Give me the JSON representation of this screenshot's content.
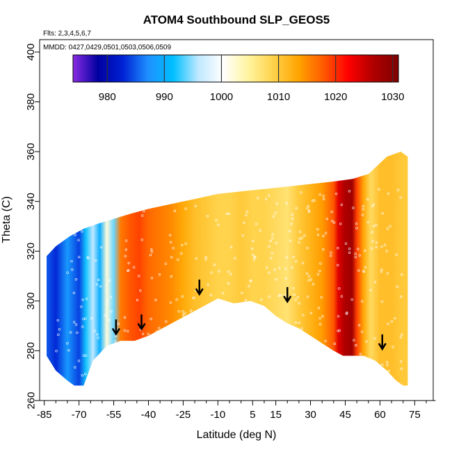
{
  "chart_data": {
    "type": "heatmap",
    "title": "ATOM4 Southbound SLP_GEOS5",
    "notes": [
      "Flts: 2,3,4,5,6,7",
      "MMDD: 0427,0429,0501,0503,0506,0509"
    ],
    "xlabel": "Latitude (deg N)",
    "ylabel": "Theta (C)",
    "xlim": [
      -87,
      83
    ],
    "ylim": [
      260,
      405
    ],
    "xticks": [
      -85,
      -70,
      -55,
      -40,
      -25,
      -10,
      5,
      15,
      30,
      45,
      60,
      75
    ],
    "xtick_labels": [
      "-85",
      "-70",
      "-55",
      "-40",
      "-25",
      "-10",
      "5",
      "15",
      "30",
      "45",
      "60",
      "75"
    ],
    "yticks": [
      260,
      280,
      300,
      320,
      340,
      360,
      380,
      400
    ],
    "ytick_labels": [
      "260",
      "280",
      "300",
      "320",
      "340",
      "360",
      "380",
      "400"
    ],
    "colorbar": {
      "range": [
        974,
        1031
      ],
      "ticks": [
        980,
        990,
        1000,
        1010,
        1020,
        1030
      ],
      "tick_labels": [
        "980",
        "990",
        "1000",
        "1010",
        "1020",
        "1030"
      ],
      "colors": [
        "#8a2be2",
        "#0000a0",
        "#0022d4",
        "#1e90ff",
        "#00bfff",
        "#bfe8ff",
        "#ffffff",
        "#fff4a0",
        "#ffd24a",
        "#ffa500",
        "#ff5a00",
        "#ff0000",
        "#b00000",
        "#800000"
      ]
    },
    "slp_profile": {
      "lat": [
        -84,
        -80,
        -75,
        -70,
        -67,
        -64,
        -61,
        -58,
        -55,
        -52,
        -48,
        -44,
        -40,
        -35,
        -30,
        -25,
        -20,
        -15,
        -10,
        -5,
        0,
        5,
        10,
        15,
        20,
        25,
        30,
        35,
        40,
        42,
        45,
        48,
        50,
        53,
        56,
        60,
        65,
        70,
        72
      ],
      "slp": [
        985,
        983,
        988,
        984,
        992,
        996,
        990,
        1002,
        994,
        1016,
        1018,
        1019,
        1017,
        1016,
        1015,
        1013,
        1011,
        1010,
        1009,
        1009,
        1010,
        1009,
        1009,
        1008,
        1007,
        1010,
        1012,
        1014,
        1018,
        1024,
        1027,
        1028,
        1019,
        1013,
        1008,
        1011,
        1011,
        1010,
        1010
      ]
    },
    "domain": {
      "bottom": [
        [
          -84,
          278
        ],
        [
          -80,
          272
        ],
        [
          -75,
          268
        ],
        [
          -72,
          266
        ],
        [
          -68,
          266
        ],
        [
          -64,
          276
        ],
        [
          -58,
          282
        ],
        [
          -52,
          284
        ],
        [
          -46,
          284
        ],
        [
          -40,
          286
        ],
        [
          -32,
          290
        ],
        [
          -24,
          294
        ],
        [
          -16,
          298
        ],
        [
          -10,
          301
        ],
        [
          -3,
          299
        ],
        [
          4,
          300
        ],
        [
          10,
          298
        ],
        [
          15,
          294
        ],
        [
          20,
          291
        ],
        [
          25,
          289
        ],
        [
          30,
          286
        ],
        [
          35,
          283
        ],
        [
          40,
          280
        ],
        [
          44,
          278
        ],
        [
          48,
          278
        ],
        [
          53,
          278
        ],
        [
          58,
          276
        ],
        [
          63,
          272
        ],
        [
          67,
          268
        ],
        [
          70,
          266
        ],
        [
          72,
          266
        ]
      ],
      "top": [
        [
          72,
          268
        ],
        [
          72,
          358
        ],
        [
          69,
          360
        ],
        [
          66,
          359
        ],
        [
          63,
          358
        ],
        [
          55,
          351
        ],
        [
          48,
          349
        ],
        [
          40,
          348
        ],
        [
          30,
          347
        ],
        [
          20,
          346
        ],
        [
          10,
          345
        ],
        [
          0,
          344
        ],
        [
          -10,
          343
        ],
        [
          -20,
          341
        ],
        [
          -30,
          339
        ],
        [
          -40,
          337
        ],
        [
          -48,
          335
        ],
        [
          -55,
          333
        ],
        [
          -62,
          331
        ],
        [
          -68,
          329
        ],
        [
          -74,
          326
        ],
        [
          -80,
          322
        ],
        [
          -84,
          318
        ]
      ]
    },
    "flight_markers": [
      {
        "lat": -54,
        "theta": 287
      },
      {
        "lat": -43,
        "theta": 289
      },
      {
        "lat": -18,
        "theta": 303
      },
      {
        "lat": 20,
        "theta": 300
      },
      {
        "lat": 61,
        "theta": 281
      }
    ]
  }
}
